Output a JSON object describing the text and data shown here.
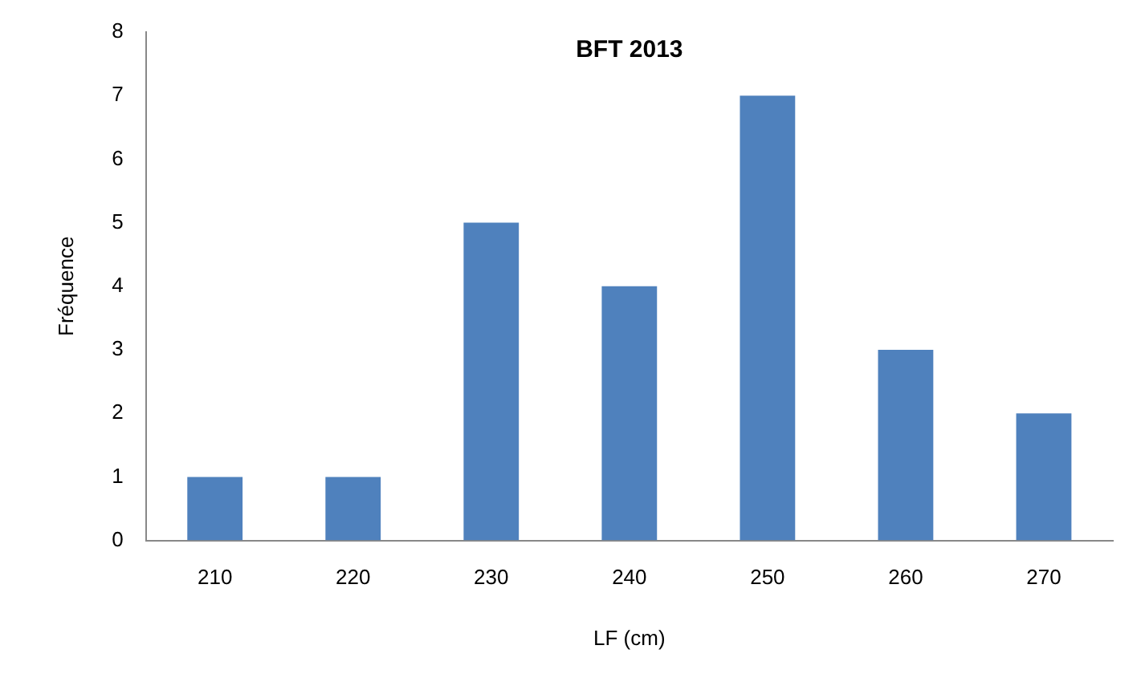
{
  "chart_data": {
    "type": "bar",
    "title": "BFT 2013",
    "xlabel": "LF (cm)",
    "ylabel": "Fréquence",
    "categories": [
      "210",
      "220",
      "230",
      "240",
      "250",
      "260",
      "270"
    ],
    "values": [
      1,
      1,
      5,
      4,
      7,
      3,
      2
    ],
    "color": "#4f81bd",
    "ylim": [
      0,
      8
    ],
    "yticks": [
      0,
      1,
      2,
      3,
      4,
      5,
      6,
      7,
      8
    ],
    "grid": false,
    "legend": false
  }
}
